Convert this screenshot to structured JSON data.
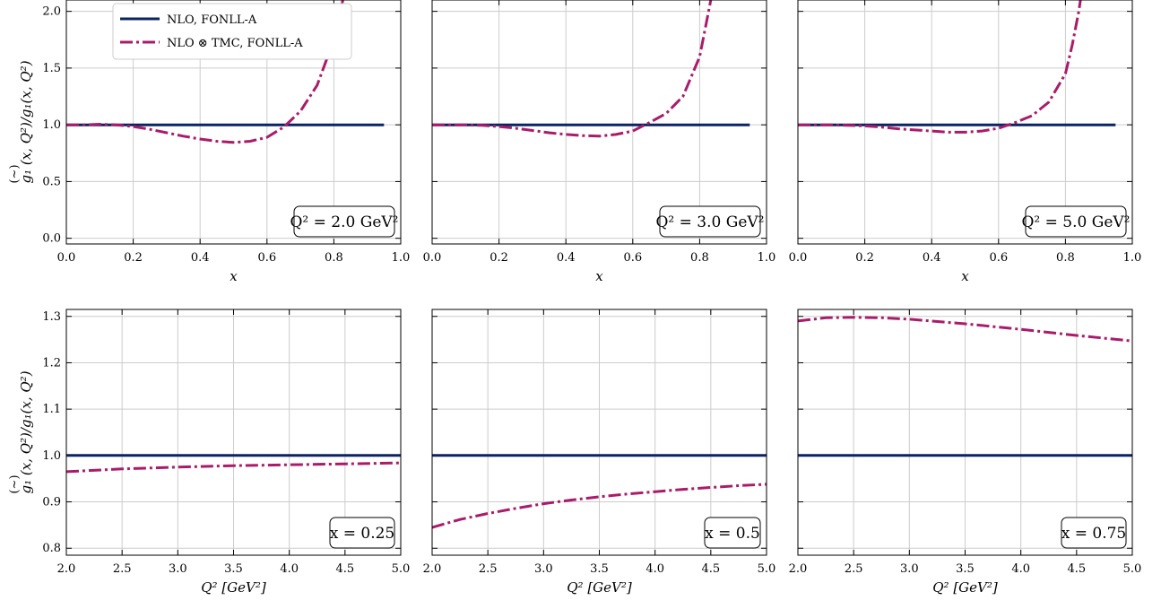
{
  "colors": {
    "nlo": "#0a2463",
    "tmc": "#a91c6a"
  },
  "legend": {
    "nlo_label": "NLO, FONLL-A",
    "tmc_label": "NLO ⊗ TMC, FONLL-A",
    "placement": "top-left of first panel"
  },
  "chart_data": [
    {
      "type": "line",
      "xlabel": "x",
      "ylabel": "g₁ (x, Q²)/g₁(x, Q²)",
      "ylabel_accent": "(~)",
      "xlim": [
        0.0,
        1.0
      ],
      "ylim": [
        -0.05,
        2.1
      ],
      "xticks": [
        "0.0",
        "0.2",
        "0.4",
        "0.6",
        "0.8",
        "1.0"
      ],
      "yticks": [
        "0.0",
        "0.5",
        "1.0",
        "1.5",
        "2.0"
      ],
      "annotation": "Q² = 2.0 GeV²",
      "series": [
        {
          "name": "NLO, FONLL-A",
          "x": [
            0.0,
            0.95
          ],
          "y": [
            1.0,
            1.0
          ]
        },
        {
          "name": "NLO ⊗ TMC, FONLL-A",
          "x": [
            0.0,
            0.05,
            0.1,
            0.15,
            0.2,
            0.25,
            0.3,
            0.35,
            0.4,
            0.45,
            0.5,
            0.55,
            0.6,
            0.65,
            0.7,
            0.75,
            0.8,
            0.82,
            0.84
          ],
          "y": [
            1.0,
            1.0,
            1.005,
            1.0,
            0.985,
            0.96,
            0.93,
            0.9,
            0.875,
            0.855,
            0.845,
            0.855,
            0.89,
            0.98,
            1.12,
            1.35,
            1.75,
            2.0,
            2.3
          ]
        }
      ]
    },
    {
      "type": "line",
      "xlabel": "x",
      "xlim": [
        0.0,
        1.0
      ],
      "ylim": [
        -0.05,
        2.1
      ],
      "xticks": [
        "0.0",
        "0.2",
        "0.4",
        "0.6",
        "0.8",
        "1.0"
      ],
      "annotation": "Q² = 3.0 GeV²",
      "series": [
        {
          "name": "NLO, FONLL-A",
          "x": [
            0.0,
            0.95
          ],
          "y": [
            1.0,
            1.0
          ]
        },
        {
          "name": "NLO ⊗ TMC, FONLL-A",
          "x": [
            0.0,
            0.05,
            0.1,
            0.15,
            0.2,
            0.25,
            0.3,
            0.35,
            0.4,
            0.45,
            0.5,
            0.55,
            0.6,
            0.65,
            0.7,
            0.75,
            0.8,
            0.82,
            0.84
          ],
          "y": [
            1.0,
            1.0,
            1.0,
            0.995,
            0.985,
            0.97,
            0.95,
            0.93,
            0.915,
            0.905,
            0.9,
            0.915,
            0.945,
            1.02,
            1.1,
            1.25,
            1.6,
            1.9,
            2.2
          ]
        }
      ]
    },
    {
      "type": "line",
      "xlabel": "x",
      "xlim": [
        0.0,
        1.0
      ],
      "ylim": [
        -0.05,
        2.1
      ],
      "xticks": [
        "0.0",
        "0.2",
        "0.4",
        "0.6",
        "0.8",
        "1.0"
      ],
      "annotation": "Q² = 5.0 GeV²",
      "series": [
        {
          "name": "NLO, FONLL-A",
          "x": [
            0.0,
            0.95
          ],
          "y": [
            1.0,
            1.0
          ]
        },
        {
          "name": "NLO ⊗ TMC, FONLL-A",
          "x": [
            0.0,
            0.05,
            0.1,
            0.15,
            0.2,
            0.25,
            0.3,
            0.35,
            0.4,
            0.45,
            0.5,
            0.55,
            0.6,
            0.65,
            0.7,
            0.75,
            0.8,
            0.82,
            0.84,
            0.85
          ],
          "y": [
            1.0,
            1.0,
            1.0,
            0.995,
            0.99,
            0.98,
            0.965,
            0.955,
            0.945,
            0.935,
            0.935,
            0.945,
            0.97,
            1.02,
            1.08,
            1.2,
            1.45,
            1.7,
            2.0,
            2.2
          ]
        }
      ]
    },
    {
      "type": "line",
      "xlabel": "Q² [GeV²]",
      "ylabel": "g₁ (x, Q²)/g₁(x, Q²)",
      "ylabel_accent": "(~)",
      "xlim": [
        2.0,
        5.0
      ],
      "ylim": [
        0.785,
        1.315
      ],
      "xticks": [
        "2.0",
        "2.5",
        "3.0",
        "3.5",
        "4.0",
        "4.5",
        "5.0"
      ],
      "yticks": [
        "0.8",
        "0.9",
        "1.0",
        "1.1",
        "1.2",
        "1.3"
      ],
      "annotation": "x = 0.25",
      "series": [
        {
          "name": "NLO, FONLL-A",
          "x": [
            2.0,
            5.0
          ],
          "y": [
            1.0,
            1.0
          ]
        },
        {
          "name": "NLO ⊗ TMC, FONLL-A",
          "x": [
            2.0,
            2.5,
            3.0,
            3.5,
            4.0,
            4.5,
            5.0
          ],
          "y": [
            0.965,
            0.971,
            0.975,
            0.978,
            0.98,
            0.982,
            0.984
          ]
        }
      ]
    },
    {
      "type": "line",
      "xlabel": "Q² [GeV²]",
      "xlim": [
        2.0,
        5.0
      ],
      "ylim": [
        0.785,
        1.315
      ],
      "xticks": [
        "2.0",
        "2.5",
        "3.0",
        "3.5",
        "4.0",
        "4.5",
        "5.0"
      ],
      "annotation": "x = 0.5",
      "series": [
        {
          "name": "NLO, FONLL-A",
          "x": [
            2.0,
            5.0
          ],
          "y": [
            1.0,
            1.0
          ]
        },
        {
          "name": "NLO ⊗ TMC, FONLL-A",
          "x": [
            2.0,
            2.25,
            2.5,
            2.75,
            3.0,
            3.25,
            3.5,
            3.75,
            4.0,
            4.25,
            4.5,
            4.75,
            5.0
          ],
          "y": [
            0.845,
            0.862,
            0.875,
            0.886,
            0.896,
            0.904,
            0.911,
            0.917,
            0.922,
            0.927,
            0.931,
            0.935,
            0.938
          ]
        }
      ]
    },
    {
      "type": "line",
      "xlabel": "Q² [GeV²]",
      "xlim": [
        2.0,
        5.0
      ],
      "ylim": [
        0.785,
        1.315
      ],
      "xticks": [
        "2.0",
        "2.5",
        "3.0",
        "3.5",
        "4.0",
        "4.5",
        "5.0"
      ],
      "annotation": "x = 0.75",
      "series": [
        {
          "name": "NLO, FONLL-A",
          "x": [
            2.0,
            5.0
          ],
          "y": [
            1.0,
            1.0
          ]
        },
        {
          "name": "NLO ⊗ TMC, FONLL-A",
          "x": [
            2.0,
            2.25,
            2.5,
            2.75,
            3.0,
            3.5,
            4.0,
            4.5,
            5.0
          ],
          "y": [
            1.29,
            1.297,
            1.298,
            1.297,
            1.294,
            1.284,
            1.272,
            1.259,
            1.247
          ]
        }
      ]
    }
  ]
}
